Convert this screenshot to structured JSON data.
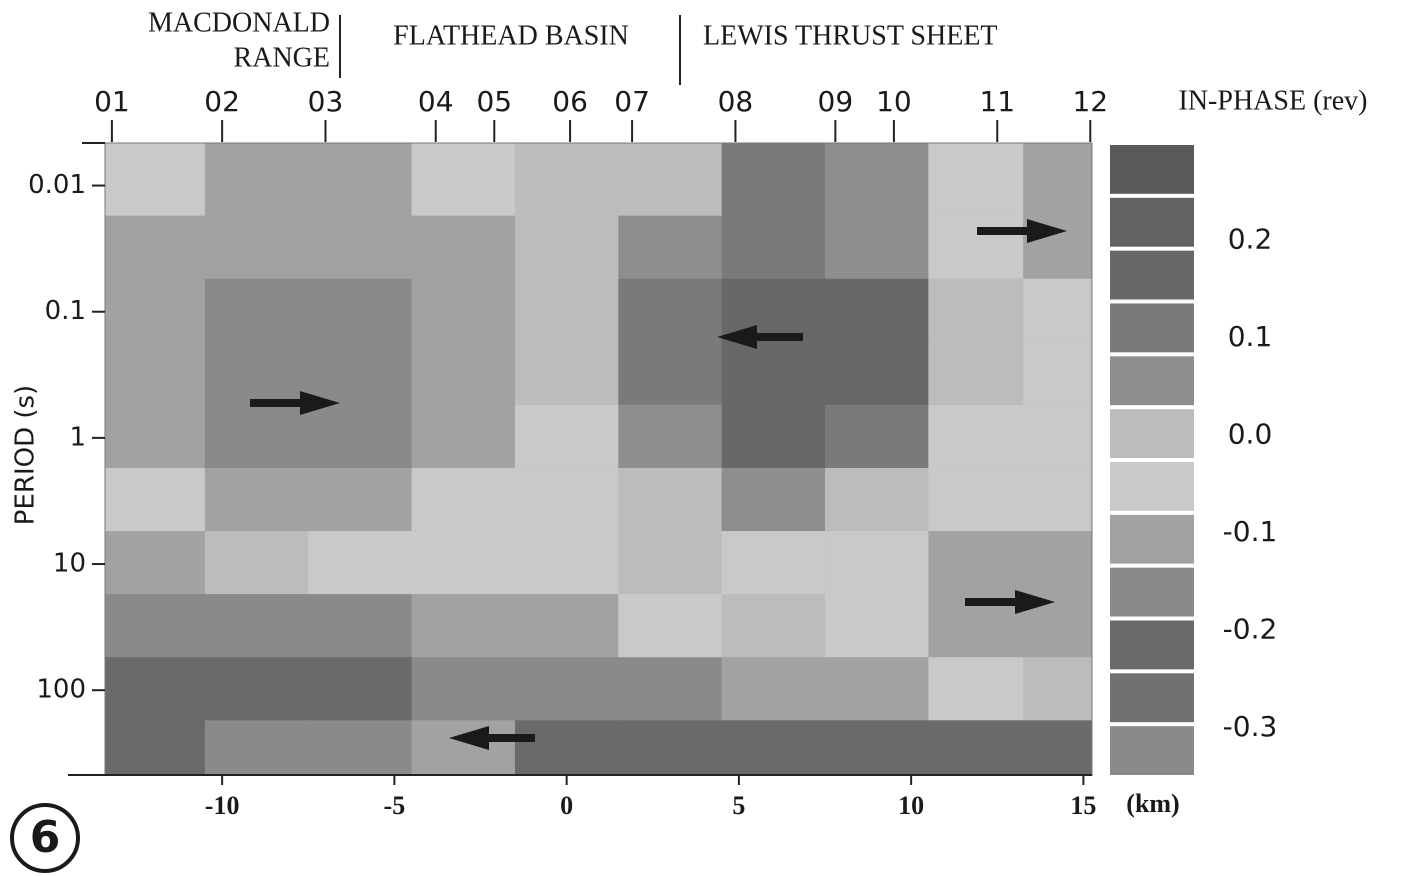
{
  "chart_data": {
    "type": "heatmap",
    "regions": [
      {
        "lines": [
          "MACDONALD",
          "RANGE"
        ]
      },
      {
        "lines": [
          "FLATHEAD BASIN"
        ]
      },
      {
        "lines": [
          "LEWIS THRUST SHEET"
        ]
      }
    ],
    "stations": [
      "01",
      "02",
      "03",
      "04",
      "05",
      "06",
      "07",
      "08",
      "09",
      "10",
      "11",
      "12"
    ],
    "station_x": [
      -13.2,
      -10.0,
      -7.0,
      -3.8,
      -2.1,
      0.1,
      1.9,
      4.9,
      7.8,
      9.5,
      12.5,
      15.2
    ],
    "x_label": "(km)",
    "y_label": "PERIOD (s)",
    "colorbar_label": "IN-PHASE (rev)",
    "panel_label": "6",
    "xlim": [
      -13.4,
      15.25
    ],
    "xticks": [
      -10,
      -5,
      0,
      5,
      10,
      15
    ],
    "ylim": [
      0.0046,
      470
    ],
    "y_log": true,
    "yticks": [
      0.01,
      0.1,
      1,
      10,
      100
    ],
    "x": [
      -12,
      -9,
      -6,
      -3,
      0,
      3,
      6,
      9,
      12,
      14.5
    ],
    "y": [
      0.01,
      0.03,
      0.1,
      0.3,
      1,
      3,
      10,
      30,
      100,
      300
    ],
    "z": [
      [
        -0.05,
        -0.1,
        -0.1,
        -0.05,
        0,
        0,
        0.1,
        0.05,
        -0.05,
        -0.1
      ],
      [
        -0.1,
        -0.1,
        -0.1,
        -0.1,
        0,
        0.05,
        0.1,
        0.05,
        -0.05,
        -0.1
      ],
      [
        -0.1,
        -0.15,
        -0.15,
        -0.1,
        0,
        0.1,
        0.15,
        0.15,
        0,
        -0.05
      ],
      [
        -0.1,
        -0.15,
        -0.15,
        -0.1,
        0,
        0.1,
        0.15,
        0.15,
        0,
        -0.05
      ],
      [
        -0.1,
        -0.15,
        -0.15,
        -0.1,
        -0.05,
        0.05,
        0.15,
        0.1,
        -0.05,
        -0.05
      ],
      [
        -0.05,
        -0.1,
        -0.1,
        -0.05,
        -0.05,
        0,
        0.05,
        0,
        -0.05,
        -0.05
      ],
      [
        -0.1,
        0,
        -0.05,
        -0.05,
        -0.05,
        0,
        -0.05,
        -0.05,
        -0.1,
        -0.1
      ],
      [
        -0.15,
        -0.15,
        -0.15,
        -0.1,
        -0.1,
        -0.05,
        0,
        -0.05,
        -0.1,
        -0.1
      ],
      [
        -0.2,
        -0.2,
        -0.2,
        -0.15,
        -0.15,
        -0.15,
        -0.1,
        -0.1,
        -0.05,
        0
      ],
      [
        -0.2,
        -0.15,
        -0.15,
        -0.1,
        -0.2,
        -0.2,
        -0.2,
        -0.2,
        -0.2,
        -0.2
      ]
    ],
    "clim": [
      -0.35,
      0.3
    ],
    "colors": [
      "#5a5a5a",
      "#626262",
      "#686868",
      "#7a7a7a",
      "#8e8e8e",
      "#bcbcbc",
      "#c9c9c9",
      "#a2a2a2",
      "#8a8a8a",
      "#6a6a6a",
      "#717171",
      "#8a8a8a"
    ],
    "cticks": [
      0.2,
      0.1,
      {
        "value": 0,
        "label": "0.0"
      },
      -0.1,
      -0.2,
      -0.3
    ]
  }
}
